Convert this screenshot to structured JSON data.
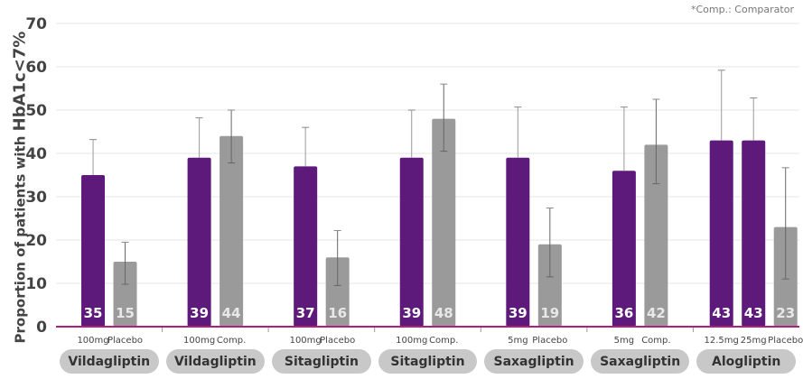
{
  "chart_data": {
    "type": "bar",
    "note": "*Comp.: Comparator",
    "ylabel_prefix": "Proportion of patients with ",
    "ylabel_emph": "HbA1c<7%",
    "ylim": [
      0,
      70
    ],
    "yticks": [
      "0",
      "10",
      "20",
      "30",
      "40",
      "50",
      "60",
      "70"
    ],
    "grid": true,
    "colors": {
      "drug": "#5e1a7a",
      "comparator": "#9a9a9a",
      "baseline": "#b0207a"
    },
    "groups": [
      {
        "label": "Vildagliptin",
        "bars": [
          {
            "label": "100mg",
            "value": 35,
            "kind": "drug",
            "err_high": 43.2
          },
          {
            "label": "Placebo",
            "value": 15,
            "kind": "comparator",
            "err_high": 19.5,
            "err_low": 9.8
          }
        ]
      },
      {
        "label": "Vildagliptin",
        "bars": [
          {
            "label": "100mg",
            "value": 39,
            "kind": "drug",
            "err_high": 48.2
          },
          {
            "label": "Comp.",
            "value": 44,
            "kind": "comparator",
            "err_high": 50,
            "err_low": 37.8
          }
        ]
      },
      {
        "label": "Sitagliptin",
        "bars": [
          {
            "label": "100mg",
            "value": 37,
            "kind": "drug",
            "err_high": 46
          },
          {
            "label": "Placebo",
            "value": 16,
            "kind": "comparator",
            "err_high": 22.2,
            "err_low": 9.5
          }
        ]
      },
      {
        "label": "Sitagliptin",
        "bars": [
          {
            "label": "100mg",
            "value": 39,
            "kind": "drug",
            "err_high": 50
          },
          {
            "label": "Comp.",
            "value": 48,
            "kind": "comparator",
            "err_high": 56,
            "err_low": 40.5
          }
        ]
      },
      {
        "label": "Saxagliptin",
        "bars": [
          {
            "label": "5mg",
            "value": 39,
            "kind": "drug",
            "err_high": 50.7
          },
          {
            "label": "Placebo",
            "value": 19,
            "kind": "comparator",
            "err_high": 27.4,
            "err_low": 11.5
          }
        ]
      },
      {
        "label": "Saxagliptin",
        "bars": [
          {
            "label": "5mg",
            "value": 36,
            "kind": "drug",
            "err_high": 50.7
          },
          {
            "label": "Comp.",
            "value": 42,
            "kind": "comparator",
            "err_high": 52.5,
            "err_low": 33
          }
        ]
      },
      {
        "label": "Alogliptin",
        "bars": [
          {
            "label": "12.5mg",
            "value": 43,
            "kind": "drug",
            "err_high": 59.2
          },
          {
            "label": "25mg",
            "value": 43,
            "kind": "drug",
            "err_high": 52.8
          },
          {
            "label": "Placebo",
            "value": 23,
            "kind": "comparator",
            "err_high": 36.7,
            "err_low": 11
          }
        ]
      }
    ]
  }
}
